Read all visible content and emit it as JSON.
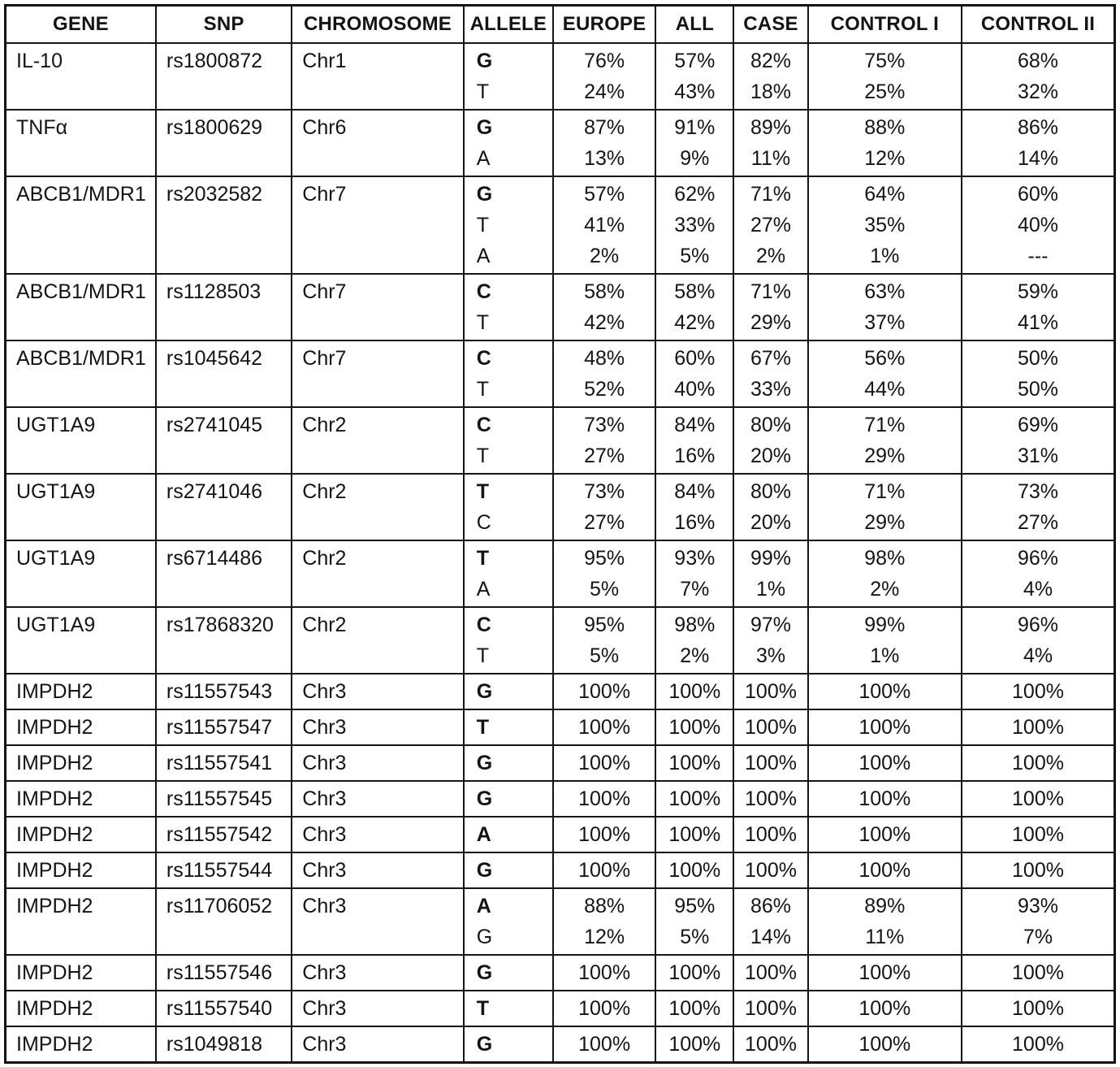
{
  "table": {
    "columns": [
      {
        "key": "gene",
        "label": "GENE"
      },
      {
        "key": "snp",
        "label": "SNP"
      },
      {
        "key": "chromosome",
        "label": "CHROMOSOME"
      },
      {
        "key": "allele",
        "label": "ALLELE"
      },
      {
        "key": "europe",
        "label": "EUROPE"
      },
      {
        "key": "all",
        "label": "ALL"
      },
      {
        "key": "case",
        "label": "CASE"
      },
      {
        "key": "control1",
        "label": "CONTROL I"
      },
      {
        "key": "control2",
        "label": "CONTROL II"
      }
    ],
    "rows": [
      {
        "gene": "IL-10",
        "snp": "rs1800872",
        "chromosome": "Chr1",
        "allele": [
          "G",
          "T"
        ],
        "europe": [
          "76%",
          "24%"
        ],
        "all": [
          "57%",
          "43%"
        ],
        "case": [
          "82%",
          "18%"
        ],
        "control1": [
          "75%",
          "25%"
        ],
        "control2": [
          "68%",
          "32%"
        ]
      },
      {
        "gene": "TNFα",
        "snp": "rs1800629",
        "chromosome": "Chr6",
        "allele": [
          "G",
          "A"
        ],
        "europe": [
          "87%",
          "13%"
        ],
        "all": [
          "91%",
          "9%"
        ],
        "case": [
          "89%",
          "11%"
        ],
        "control1": [
          "88%",
          "12%"
        ],
        "control2": [
          "86%",
          "14%"
        ]
      },
      {
        "gene": "ABCB1/MDR1",
        "snp": "rs2032582",
        "chromosome": "Chr7",
        "allele": [
          "G",
          "T",
          "A"
        ],
        "europe": [
          "57%",
          "41%",
          "2%"
        ],
        "all": [
          "62%",
          "33%",
          "5%"
        ],
        "case": [
          "71%",
          "27%",
          "2%"
        ],
        "control1": [
          "64%",
          "35%",
          "1%"
        ],
        "control2": [
          "60%",
          "40%",
          "---"
        ]
      },
      {
        "gene": "ABCB1/MDR1",
        "snp": "rs1128503",
        "chromosome": "Chr7",
        "allele": [
          "C",
          "T"
        ],
        "europe": [
          "58%",
          "42%"
        ],
        "all": [
          "58%",
          "42%"
        ],
        "case": [
          "71%",
          "29%"
        ],
        "control1": [
          "63%",
          "37%"
        ],
        "control2": [
          "59%",
          "41%"
        ]
      },
      {
        "gene": "ABCB1/MDR1",
        "snp": "rs1045642",
        "chromosome": "Chr7",
        "allele": [
          "C",
          "T"
        ],
        "europe": [
          "48%",
          "52%"
        ],
        "all": [
          "60%",
          "40%"
        ],
        "case": [
          "67%",
          "33%"
        ],
        "control1": [
          "56%",
          "44%"
        ],
        "control2": [
          "50%",
          "50%"
        ]
      },
      {
        "gene": "UGT1A9",
        "snp": "rs2741045",
        "chromosome": "Chr2",
        "allele": [
          "C",
          "T"
        ],
        "europe": [
          "73%",
          "27%"
        ],
        "all": [
          "84%",
          "16%"
        ],
        "case": [
          "80%",
          "20%"
        ],
        "control1": [
          "71%",
          "29%"
        ],
        "control2": [
          "69%",
          "31%"
        ]
      },
      {
        "gene": "UGT1A9",
        "snp": "rs2741046",
        "chromosome": "Chr2",
        "allele": [
          "T",
          "C"
        ],
        "europe": [
          "73%",
          "27%"
        ],
        "all": [
          "84%",
          "16%"
        ],
        "case": [
          "80%",
          "20%"
        ],
        "control1": [
          "71%",
          "29%"
        ],
        "control2": [
          "73%",
          "27%"
        ]
      },
      {
        "gene": "UGT1A9",
        "snp": "rs6714486",
        "chromosome": "Chr2",
        "allele": [
          "T",
          "A"
        ],
        "europe": [
          "95%",
          "5%"
        ],
        "all": [
          "93%",
          "7%"
        ],
        "case": [
          "99%",
          "1%"
        ],
        "control1": [
          "98%",
          "2%"
        ],
        "control2": [
          "96%",
          "4%"
        ]
      },
      {
        "gene": "UGT1A9",
        "snp": "rs17868320",
        "chromosome": "Chr2",
        "allele": [
          "C",
          "T"
        ],
        "europe": [
          "95%",
          "5%"
        ],
        "all": [
          "98%",
          "2%"
        ],
        "case": [
          "97%",
          "3%"
        ],
        "control1": [
          "99%",
          "1%"
        ],
        "control2": [
          "96%",
          "4%"
        ]
      },
      {
        "gene": "IMPDH2",
        "snp": "rs11557543",
        "chromosome": "Chr3",
        "allele": [
          "G"
        ],
        "europe": [
          "100%"
        ],
        "all": [
          "100%"
        ],
        "case": [
          "100%"
        ],
        "control1": [
          "100%"
        ],
        "control2": [
          "100%"
        ]
      },
      {
        "gene": "IMPDH2",
        "snp": "rs11557547",
        "chromosome": "Chr3",
        "allele": [
          "T"
        ],
        "europe": [
          "100%"
        ],
        "all": [
          "100%"
        ],
        "case": [
          "100%"
        ],
        "control1": [
          "100%"
        ],
        "control2": [
          "100%"
        ]
      },
      {
        "gene": "IMPDH2",
        "snp": "rs11557541",
        "chromosome": "Chr3",
        "allele": [
          "G"
        ],
        "europe": [
          "100%"
        ],
        "all": [
          "100%"
        ],
        "case": [
          "100%"
        ],
        "control1": [
          "100%"
        ],
        "control2": [
          "100%"
        ]
      },
      {
        "gene": "IMPDH2",
        "snp": "rs11557545",
        "chromosome": "Chr3",
        "allele": [
          "G"
        ],
        "europe": [
          "100%"
        ],
        "all": [
          "100%"
        ],
        "case": [
          "100%"
        ],
        "control1": [
          "100%"
        ],
        "control2": [
          "100%"
        ]
      },
      {
        "gene": "IMPDH2",
        "snp": "rs11557542",
        "chromosome": "Chr3",
        "allele": [
          "A"
        ],
        "europe": [
          "100%"
        ],
        "all": [
          "100%"
        ],
        "case": [
          "100%"
        ],
        "control1": [
          "100%"
        ],
        "control2": [
          "100%"
        ]
      },
      {
        "gene": "IMPDH2",
        "snp": "rs11557544",
        "chromosome": "Chr3",
        "allele": [
          "G"
        ],
        "europe": [
          "100%"
        ],
        "all": [
          "100%"
        ],
        "case": [
          "100%"
        ],
        "control1": [
          "100%"
        ],
        "control2": [
          "100%"
        ]
      },
      {
        "gene": "IMPDH2",
        "snp": "rs11706052",
        "chromosome": "Chr3",
        "allele": [
          "A",
          "G"
        ],
        "europe": [
          "88%",
          "12%"
        ],
        "all": [
          "95%",
          "5%"
        ],
        "case": [
          "86%",
          "14%"
        ],
        "control1": [
          "89%",
          "11%"
        ],
        "control2": [
          "93%",
          "7%"
        ]
      },
      {
        "gene": "IMPDH2",
        "snp": "rs11557546",
        "chromosome": "Chr3",
        "allele": [
          "G"
        ],
        "europe": [
          "100%"
        ],
        "all": [
          "100%"
        ],
        "case": [
          "100%"
        ],
        "control1": [
          "100%"
        ],
        "control2": [
          "100%"
        ]
      },
      {
        "gene": "IMPDH2",
        "snp": "rs11557540",
        "chromosome": "Chr3",
        "allele": [
          "T"
        ],
        "europe": [
          "100%"
        ],
        "all": [
          "100%"
        ],
        "case": [
          "100%"
        ],
        "control1": [
          "100%"
        ],
        "control2": [
          "100%"
        ]
      },
      {
        "gene": "IMPDH2",
        "snp": "rs1049818",
        "chromosome": "Chr3",
        "allele": [
          "G"
        ],
        "europe": [
          "100%"
        ],
        "all": [
          "100%"
        ],
        "case": [
          "100%"
        ],
        "control1": [
          "100%"
        ],
        "control2": [
          "100%"
        ]
      }
    ]
  }
}
